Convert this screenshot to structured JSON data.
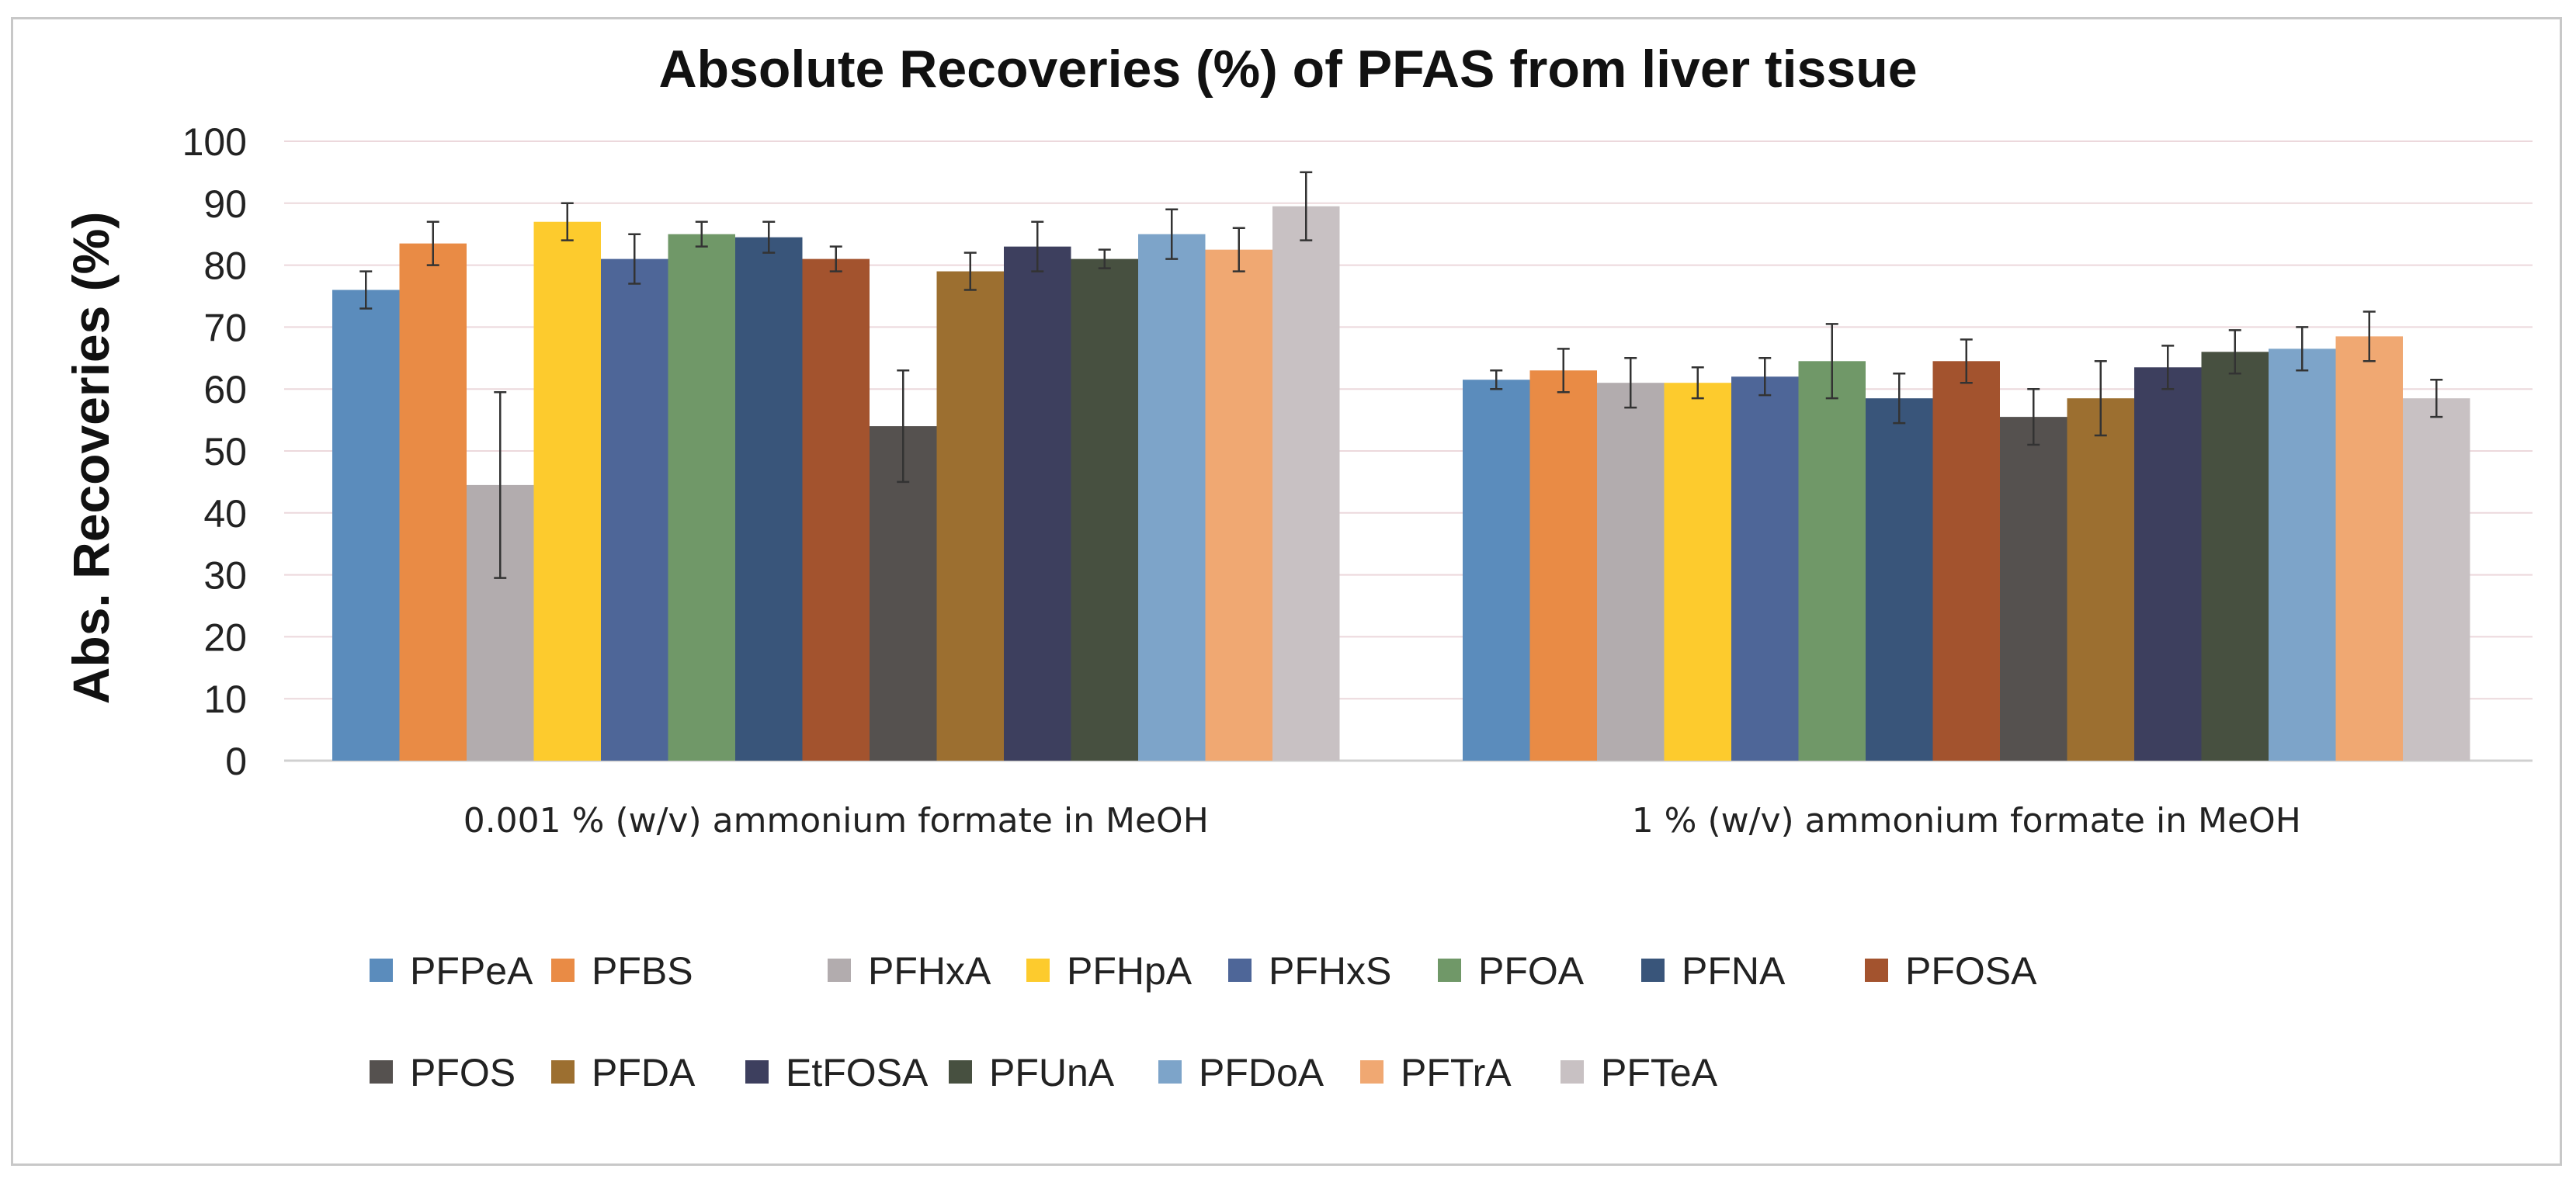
{
  "chart_data": {
    "type": "bar",
    "title": "Absolute Recoveries (%) of PFAS from liver tissue",
    "xlabel": "",
    "ylabel": "Abs. Recoveries (%)",
    "ylim": [
      0,
      100
    ],
    "yticks": [
      0,
      10,
      20,
      30,
      40,
      50,
      60,
      70,
      80,
      90,
      100
    ],
    "grid": true,
    "legend_position": "bottom",
    "categories": [
      "0.001 % (w/v) ammonium formate in MeOH",
      "1 % (w/v) ammonium formate in MeOH"
    ],
    "series": [
      {
        "name": "PFPeA",
        "color": "#5b8cbc",
        "values": [
          76,
          61.5
        ],
        "errors": [
          3,
          1.5
        ]
      },
      {
        "name": "PFBS",
        "color": "#e98b45",
        "values": [
          83.5,
          63
        ],
        "errors": [
          3.5,
          3.5
        ]
      },
      {
        "name": "PFHxA",
        "color": "#b2acae",
        "values": [
          44.5,
          61
        ],
        "errors": [
          15,
          4
        ]
      },
      {
        "name": "PFHpA",
        "color": "#fdcb2d",
        "values": [
          87,
          61
        ],
        "errors": [
          3,
          2.5
        ]
      },
      {
        "name": "PFHxS",
        "color": "#4e6698",
        "values": [
          81,
          62
        ],
        "errors": [
          4,
          3
        ]
      },
      {
        "name": "PFOA",
        "color": "#709868",
        "values": [
          85,
          64.5
        ],
        "errors": [
          2,
          6
        ]
      },
      {
        "name": "PFNA",
        "color": "#39557a",
        "values": [
          84.5,
          58.5
        ],
        "errors": [
          2.5,
          4
        ]
      },
      {
        "name": "PFOSA",
        "color": "#a3532e",
        "values": [
          81,
          64.5
        ],
        "errors": [
          2,
          3.5
        ]
      },
      {
        "name": "PFOS",
        "color": "#55514f",
        "values": [
          54,
          55.5
        ],
        "errors": [
          9,
          4.5
        ]
      },
      {
        "name": "PFDA",
        "color": "#9c6f30",
        "values": [
          79,
          58.5
        ],
        "errors": [
          3,
          6
        ]
      },
      {
        "name": "EtFOSA",
        "color": "#3d3f5e",
        "values": [
          83,
          63.5
        ],
        "errors": [
          4,
          3.5
        ]
      },
      {
        "name": "PFUnA",
        "color": "#475040",
        "values": [
          81,
          66
        ],
        "errors": [
          1.5,
          3.5
        ]
      },
      {
        "name": "PFDoA",
        "color": "#7da4c9",
        "values": [
          85,
          66.5
        ],
        "errors": [
          4,
          3.5
        ]
      },
      {
        "name": "PFTrA",
        "color": "#f0a872",
        "values": [
          82.5,
          68.5
        ],
        "errors": [
          3.5,
          4
        ]
      },
      {
        "name": "PFTeA",
        "color": "#c8c1c3",
        "values": [
          89.5,
          58.5
        ],
        "errors": [
          5.5,
          3
        ]
      }
    ]
  }
}
